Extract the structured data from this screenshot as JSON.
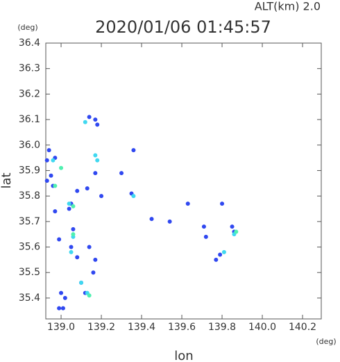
{
  "chart_data": {
    "type": "scatter",
    "title": "2020/01/06 01:45:57",
    "subtitle": "ALT(km) 2.0",
    "x_label": "lon",
    "y_label": "lat",
    "x_unit": "(deg)",
    "y_unit": "(deg)",
    "xlim": [
      138.924,
      140.293
    ],
    "ylim": [
      35.318,
      36.4
    ],
    "xticks": [
      {
        "value": 139,
        "label": "139.0"
      },
      139.2,
      139.4,
      139.6,
      139.8,
      {
        "value": 140,
        "label": "140.0"
      },
      140.2
    ],
    "yticks": [
      36.4,
      36.3,
      36.2,
      36.1,
      {
        "value": 36,
        "label": "36.0"
      },
      35.9,
      35.8,
      35.7,
      35.6,
      35.5,
      35.4
    ],
    "series": [
      {
        "color": "#3048f0",
        "x": [
          139.14,
          139.17,
          139.18,
          138.94,
          138.97,
          138.93,
          138.95,
          138.93,
          138.96,
          139.05,
          138.97,
          139.04,
          139.06,
          138.99,
          139.05,
          139.08,
          139.14,
          139.17,
          139.0,
          139.02,
          139.01,
          138.99,
          139.1,
          139.12,
          139.16,
          139.36,
          139.3,
          139.17,
          139.13,
          139.08,
          139.45,
          139.54,
          139.79,
          139.77,
          139.85,
          139.72,
          139.63,
          139.8,
          139.2,
          139.35,
          139.71,
          139.86
        ],
        "y": [
          36.11,
          36.1,
          36.08,
          35.98,
          35.95,
          35.94,
          35.88,
          35.86,
          35.84,
          35.77,
          35.74,
          35.75,
          35.67,
          35.63,
          35.6,
          35.56,
          35.6,
          35.55,
          35.42,
          35.4,
          35.36,
          35.36,
          35.46,
          35.42,
          35.5,
          35.98,
          35.89,
          35.89,
          35.83,
          35.82,
          35.71,
          35.7,
          35.57,
          35.55,
          35.68,
          35.64,
          35.77,
          35.77,
          35.8,
          35.81,
          35.68,
          35.66
        ]
      },
      {
        "color": "#40d8f0",
        "x": [
          139.12,
          139.17,
          138.96,
          139.04,
          139.06,
          139.05,
          139.1,
          139.13,
          139.86,
          139.81,
          139.18,
          139.36
        ],
        "y": [
          36.09,
          35.96,
          35.94,
          35.77,
          35.64,
          35.58,
          35.46,
          35.42,
          35.65,
          35.58,
          35.94,
          35.8
        ]
      },
      {
        "color": "#50f0b0",
        "x": [
          138.97,
          139.0,
          139.06,
          139.14,
          139.87,
          139.06
        ],
        "y": [
          35.84,
          35.91,
          35.76,
          35.41,
          35.66,
          35.65
        ]
      }
    ]
  }
}
